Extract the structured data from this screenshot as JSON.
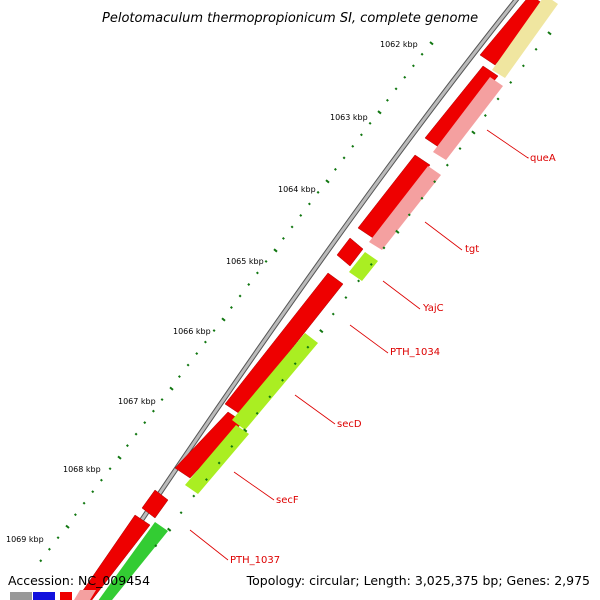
{
  "title": "Pelotomaculum thermopropionicum SI, complete genome",
  "footer": {
    "accession": "Accession: NC_009454",
    "info": "Topology: circular; Length: 3,025,375 bp; Genes: 2,975"
  },
  "scale_labels": [
    "1062 kbp",
    "1063 kbp",
    "1064 kbp",
    "1065 kbp",
    "1066 kbp",
    "1067 kbp",
    "1068 kbp",
    "1069 kbp"
  ],
  "gene_labels": [
    "queA",
    "tgt",
    "YajC",
    "PTH_1034",
    "secD",
    "secF",
    "PTH_1037"
  ],
  "colors": {
    "backbone": "#aaaaaa",
    "cds_forward": "#ee0000",
    "trna_pink": "#f4a0a0",
    "light_green": "#aaee22",
    "green": "#33cc33",
    "yellow": "#f0e6a0",
    "blue": "#1111dd",
    "tick": "#117711",
    "label_line": "#dd0000"
  }
}
